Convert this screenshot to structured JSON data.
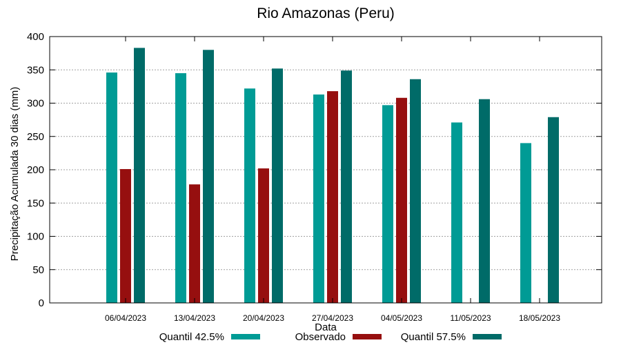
{
  "chart_data": {
    "type": "bar",
    "title": "Rio Amazonas (Peru)",
    "xlabel": "Data",
    "ylabel": "Precipitação Acumulada 30 dias (mm)",
    "ylim": [
      0,
      400
    ],
    "yticks": [
      0,
      50,
      100,
      150,
      200,
      250,
      300,
      350,
      400
    ],
    "grid": true,
    "legend_position": "bottom",
    "categories": [
      "06/04/2023",
      "13/04/2023",
      "20/04/2023",
      "27/04/2023",
      "04/05/2023",
      "11/05/2023",
      "18/05/2023"
    ],
    "series": [
      {
        "name": "Quantil 42.5%",
        "color": "#009b95",
        "values": [
          346,
          345,
          322,
          313,
          297,
          271,
          240
        ]
      },
      {
        "name": "Observado",
        "color": "#960f0f",
        "values": [
          201,
          178,
          202,
          318,
          308,
          null,
          null
        ]
      },
      {
        "name": "Quantil 57.5%",
        "color": "#006b68",
        "values": [
          383,
          380,
          352,
          349,
          336,
          306,
          279
        ]
      }
    ]
  }
}
